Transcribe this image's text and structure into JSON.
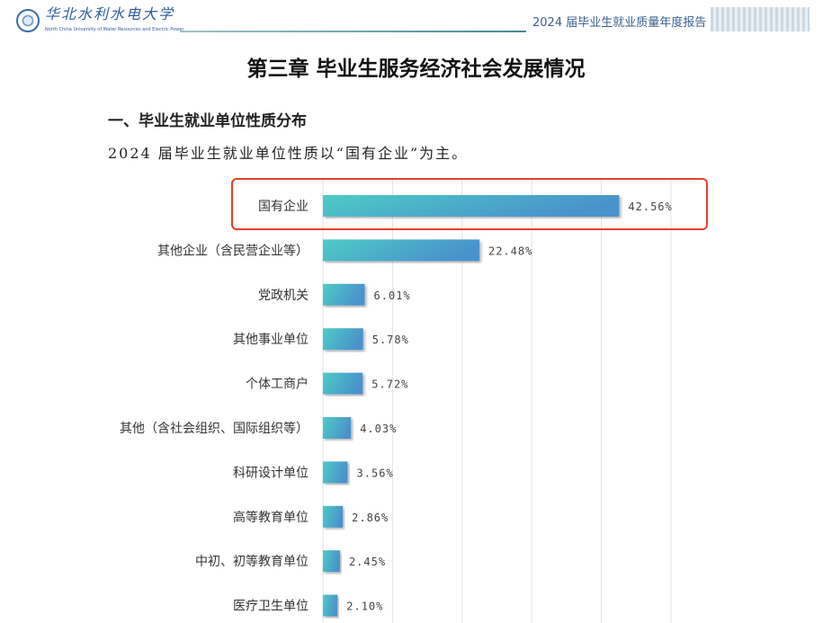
{
  "header": {
    "university_name": "华北水利水电大学",
    "university_english": "North China University of Water Resources and Electric Power",
    "report_title": "2024 届毕业生就业质量年度报告"
  },
  "chapter_title": "第三章 毕业生服务经济社会发展情况",
  "section_title": "一、毕业生就业单位性质分布",
  "paragraph": "2024 届毕业生就业单位性质以“国有企业”为主。",
  "colors": {
    "bar_start": "#4ecbc6",
    "bar_end": "#4a92cc",
    "highlight_border": "#e8402a",
    "grid": "#e3e3e3"
  },
  "chart_data": {
    "type": "bar",
    "orientation": "horizontal",
    "categories": [
      "国有企业",
      "其他企业（含民营企业等）",
      "党政机关",
      "其他事业单位",
      "个体工商户",
      "其他（含社会组织、国际组织等）",
      "科研设计单位",
      "高等教育单位",
      "中初、初等教育单位",
      "医疗卫生单位"
    ],
    "values": [
      42.56,
      22.48,
      6.01,
      5.78,
      5.72,
      4.03,
      3.56,
      2.86,
      2.45,
      2.1
    ],
    "labels": [
      "42.56%",
      "22.48%",
      "6.01%",
      "5.78%",
      "5.72%",
      "4.03%",
      "3.56%",
      "2.86%",
      "2.45%",
      "2.10%"
    ],
    "xlim": [
      0,
      50
    ],
    "grid": true,
    "highlighted_category": "国有企业"
  }
}
